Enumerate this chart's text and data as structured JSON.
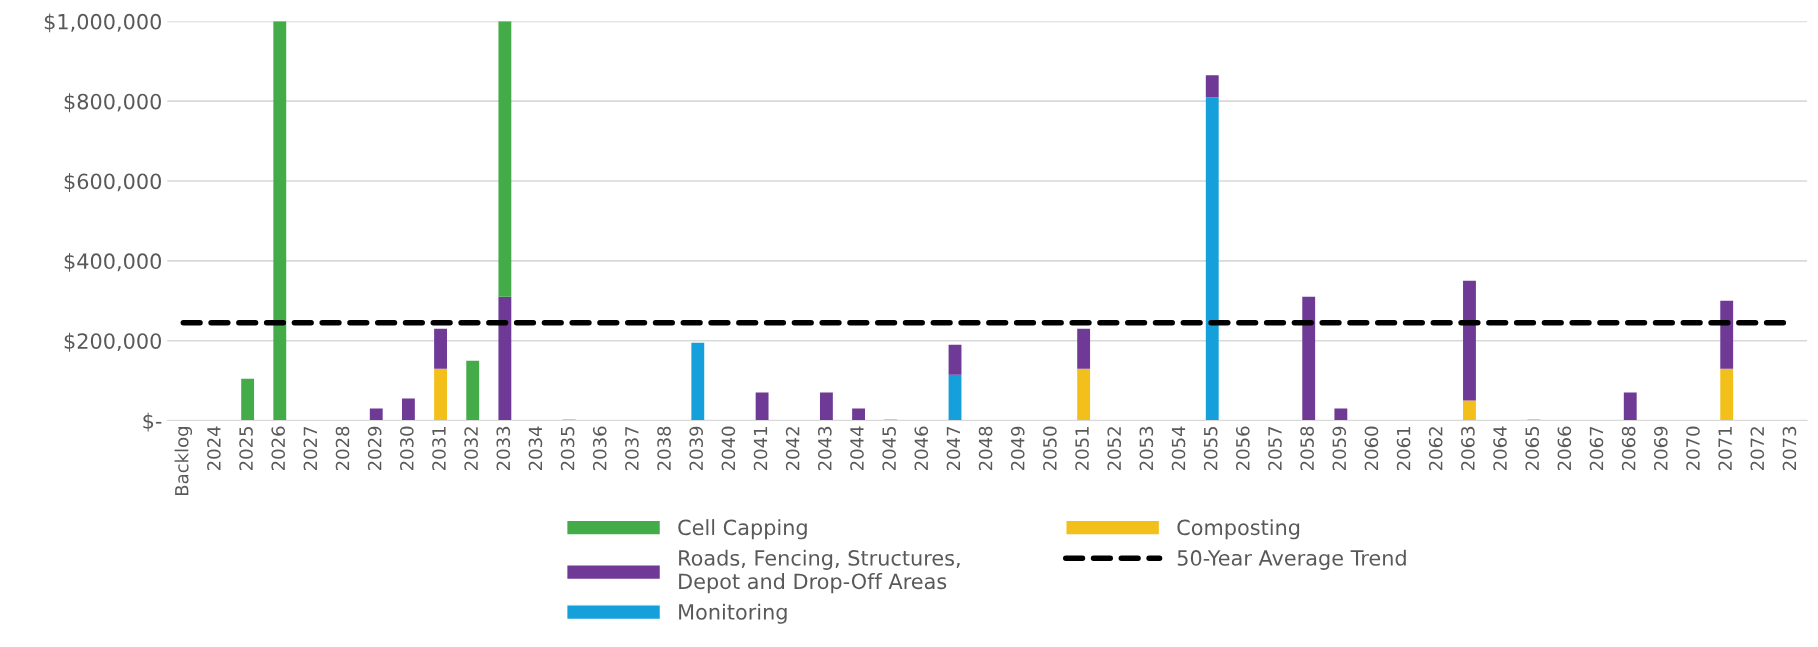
{
  "chart_data": {
    "type": "bar",
    "stacked": true,
    "categories": [
      "Backlog",
      "2024",
      "2025",
      "2026",
      "2027",
      "2028",
      "2029",
      "2030",
      "2031",
      "2032",
      "2033",
      "2034",
      "2035",
      "2036",
      "2037",
      "2038",
      "2039",
      "2040",
      "2041",
      "2042",
      "2043",
      "2044",
      "2045",
      "2046",
      "2047",
      "2048",
      "2049",
      "2050",
      "2051",
      "2052",
      "2053",
      "2054",
      "2055",
      "2056",
      "2057",
      "2058",
      "2059",
      "2060",
      "2061",
      "2062",
      "2063",
      "2064",
      "2065",
      "2066",
      "2067",
      "2068",
      "2069",
      "2070",
      "2071",
      "2072",
      "2073"
    ],
    "series": [
      {
        "name": "Monitoring",
        "color": "#15a0db",
        "values": [
          null,
          null,
          null,
          null,
          null,
          null,
          null,
          null,
          null,
          null,
          null,
          null,
          null,
          null,
          null,
          null,
          195000,
          null,
          null,
          null,
          null,
          null,
          null,
          null,
          115000,
          null,
          null,
          null,
          null,
          null,
          null,
          null,
          810000,
          null,
          null,
          null,
          null,
          null,
          null,
          null,
          null,
          null,
          null,
          null,
          null,
          null,
          null,
          null,
          null,
          null,
          null
        ]
      },
      {
        "name": "Composting",
        "color": "#f2bf1b",
        "values": [
          null,
          null,
          null,
          null,
          null,
          null,
          null,
          null,
          130000,
          null,
          null,
          null,
          3000,
          null,
          null,
          null,
          null,
          null,
          null,
          null,
          null,
          null,
          3000,
          null,
          null,
          null,
          null,
          null,
          130000,
          null,
          null,
          null,
          null,
          null,
          null,
          null,
          null,
          null,
          null,
          null,
          50000,
          null,
          3000,
          null,
          null,
          null,
          null,
          null,
          130000,
          null,
          null
        ]
      },
      {
        "name": "Roads, Fencing, Structures,\nDepot and Drop-Off Areas",
        "color": "#6f3996",
        "values": [
          null,
          null,
          null,
          null,
          null,
          null,
          30000,
          55000,
          100000,
          null,
          310000,
          null,
          null,
          null,
          null,
          null,
          null,
          null,
          70000,
          null,
          70000,
          30000,
          null,
          null,
          75000,
          null,
          null,
          null,
          100000,
          null,
          null,
          null,
          55000,
          null,
          null,
          310000,
          30000,
          null,
          null,
          null,
          300000,
          null,
          null,
          null,
          null,
          70000,
          null,
          null,
          170000,
          null,
          null
        ]
      },
      {
        "name": "Cell Capping",
        "color": "#43ac49",
        "values": [
          null,
          null,
          105000,
          1000000,
          null,
          null,
          null,
          null,
          null,
          150000,
          690000,
          null,
          null,
          null,
          null,
          null,
          null,
          null,
          null,
          null,
          null,
          null,
          null,
          null,
          null,
          null,
          null,
          null,
          null,
          null,
          null,
          null,
          null,
          null,
          null,
          null,
          null,
          null,
          null,
          null,
          null,
          null,
          null,
          null,
          null,
          null,
          null,
          null,
          null,
          null,
          null
        ]
      },
      {
        "name": "50-Year Average Trend",
        "type": "line",
        "color": "#000000",
        "line_style": "dashed",
        "marker": "none",
        "values": [
          245000,
          245000,
          245000,
          245000,
          245000,
          245000,
          245000,
          245000,
          245000,
          245000,
          245000,
          245000,
          245000,
          245000,
          245000,
          245000,
          245000,
          245000,
          245000,
          245000,
          245000,
          245000,
          245000,
          245000,
          245000,
          245000,
          245000,
          245000,
          245000,
          245000,
          245000,
          245000,
          245000,
          245000,
          245000,
          245000,
          245000,
          245000,
          245000,
          245000,
          245000,
          245000,
          245000,
          245000,
          245000,
          245000,
          245000,
          245000,
          245000,
          245000,
          245000
        ]
      }
    ],
    "ylim": [
      0,
      1000000
    ],
    "yticks": [
      {
        "value": 0,
        "label": "$-"
      },
      {
        "value": 200000,
        "label": "$200,000"
      },
      {
        "value": 400000,
        "label": "$400,000"
      },
      {
        "value": 600000,
        "label": "$600,000"
      },
      {
        "value": 800000,
        "label": "$800,000"
      },
      {
        "value": 1000000,
        "label": "$1,000,000"
      }
    ],
    "grid": "y",
    "legend": "bottom"
  }
}
